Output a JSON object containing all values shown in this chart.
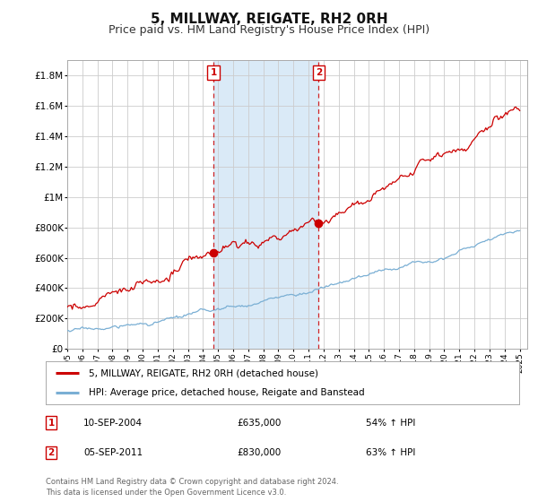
{
  "title": "5, MILLWAY, REIGATE, RH2 0RH",
  "subtitle": "Price paid vs. HM Land Registry's House Price Index (HPI)",
  "title_fontsize": 11,
  "subtitle_fontsize": 9,
  "ylabel_ticks": [
    "£0",
    "£200K",
    "£400K",
    "£600K",
    "£800K",
    "£1M",
    "£1.2M",
    "£1.4M",
    "£1.6M",
    "£1.8M"
  ],
  "ytick_values": [
    0,
    200000,
    400000,
    600000,
    800000,
    1000000,
    1200000,
    1400000,
    1600000,
    1800000
  ],
  "ylim": [
    0,
    1900000
  ],
  "xlim_start": 1995.0,
  "xlim_end": 2025.5,
  "sale1_year": 2004.69,
  "sale1_price": 635000,
  "sale1_label": "1",
  "sale1_date": "10-SEP-2004",
  "sale1_hpi": "54% ↑ HPI",
  "sale2_year": 2011.67,
  "sale2_price": 830000,
  "sale2_label": "2",
  "sale2_date": "05-SEP-2011",
  "sale2_hpi": "63% ↑ HPI",
  "shade_color": "#daeaf7",
  "line1_color": "#cc0000",
  "line2_color": "#7aafd4",
  "marker_box_color": "#cc0000",
  "legend_line1": "5, MILLWAY, REIGATE, RH2 0RH (detached house)",
  "legend_line2": "HPI: Average price, detached house, Reigate and Banstead",
  "footnote": "Contains HM Land Registry data © Crown copyright and database right 2024.\nThis data is licensed under the Open Government Licence v3.0.",
  "bg_color": "#ffffff",
  "grid_color": "#cccccc"
}
